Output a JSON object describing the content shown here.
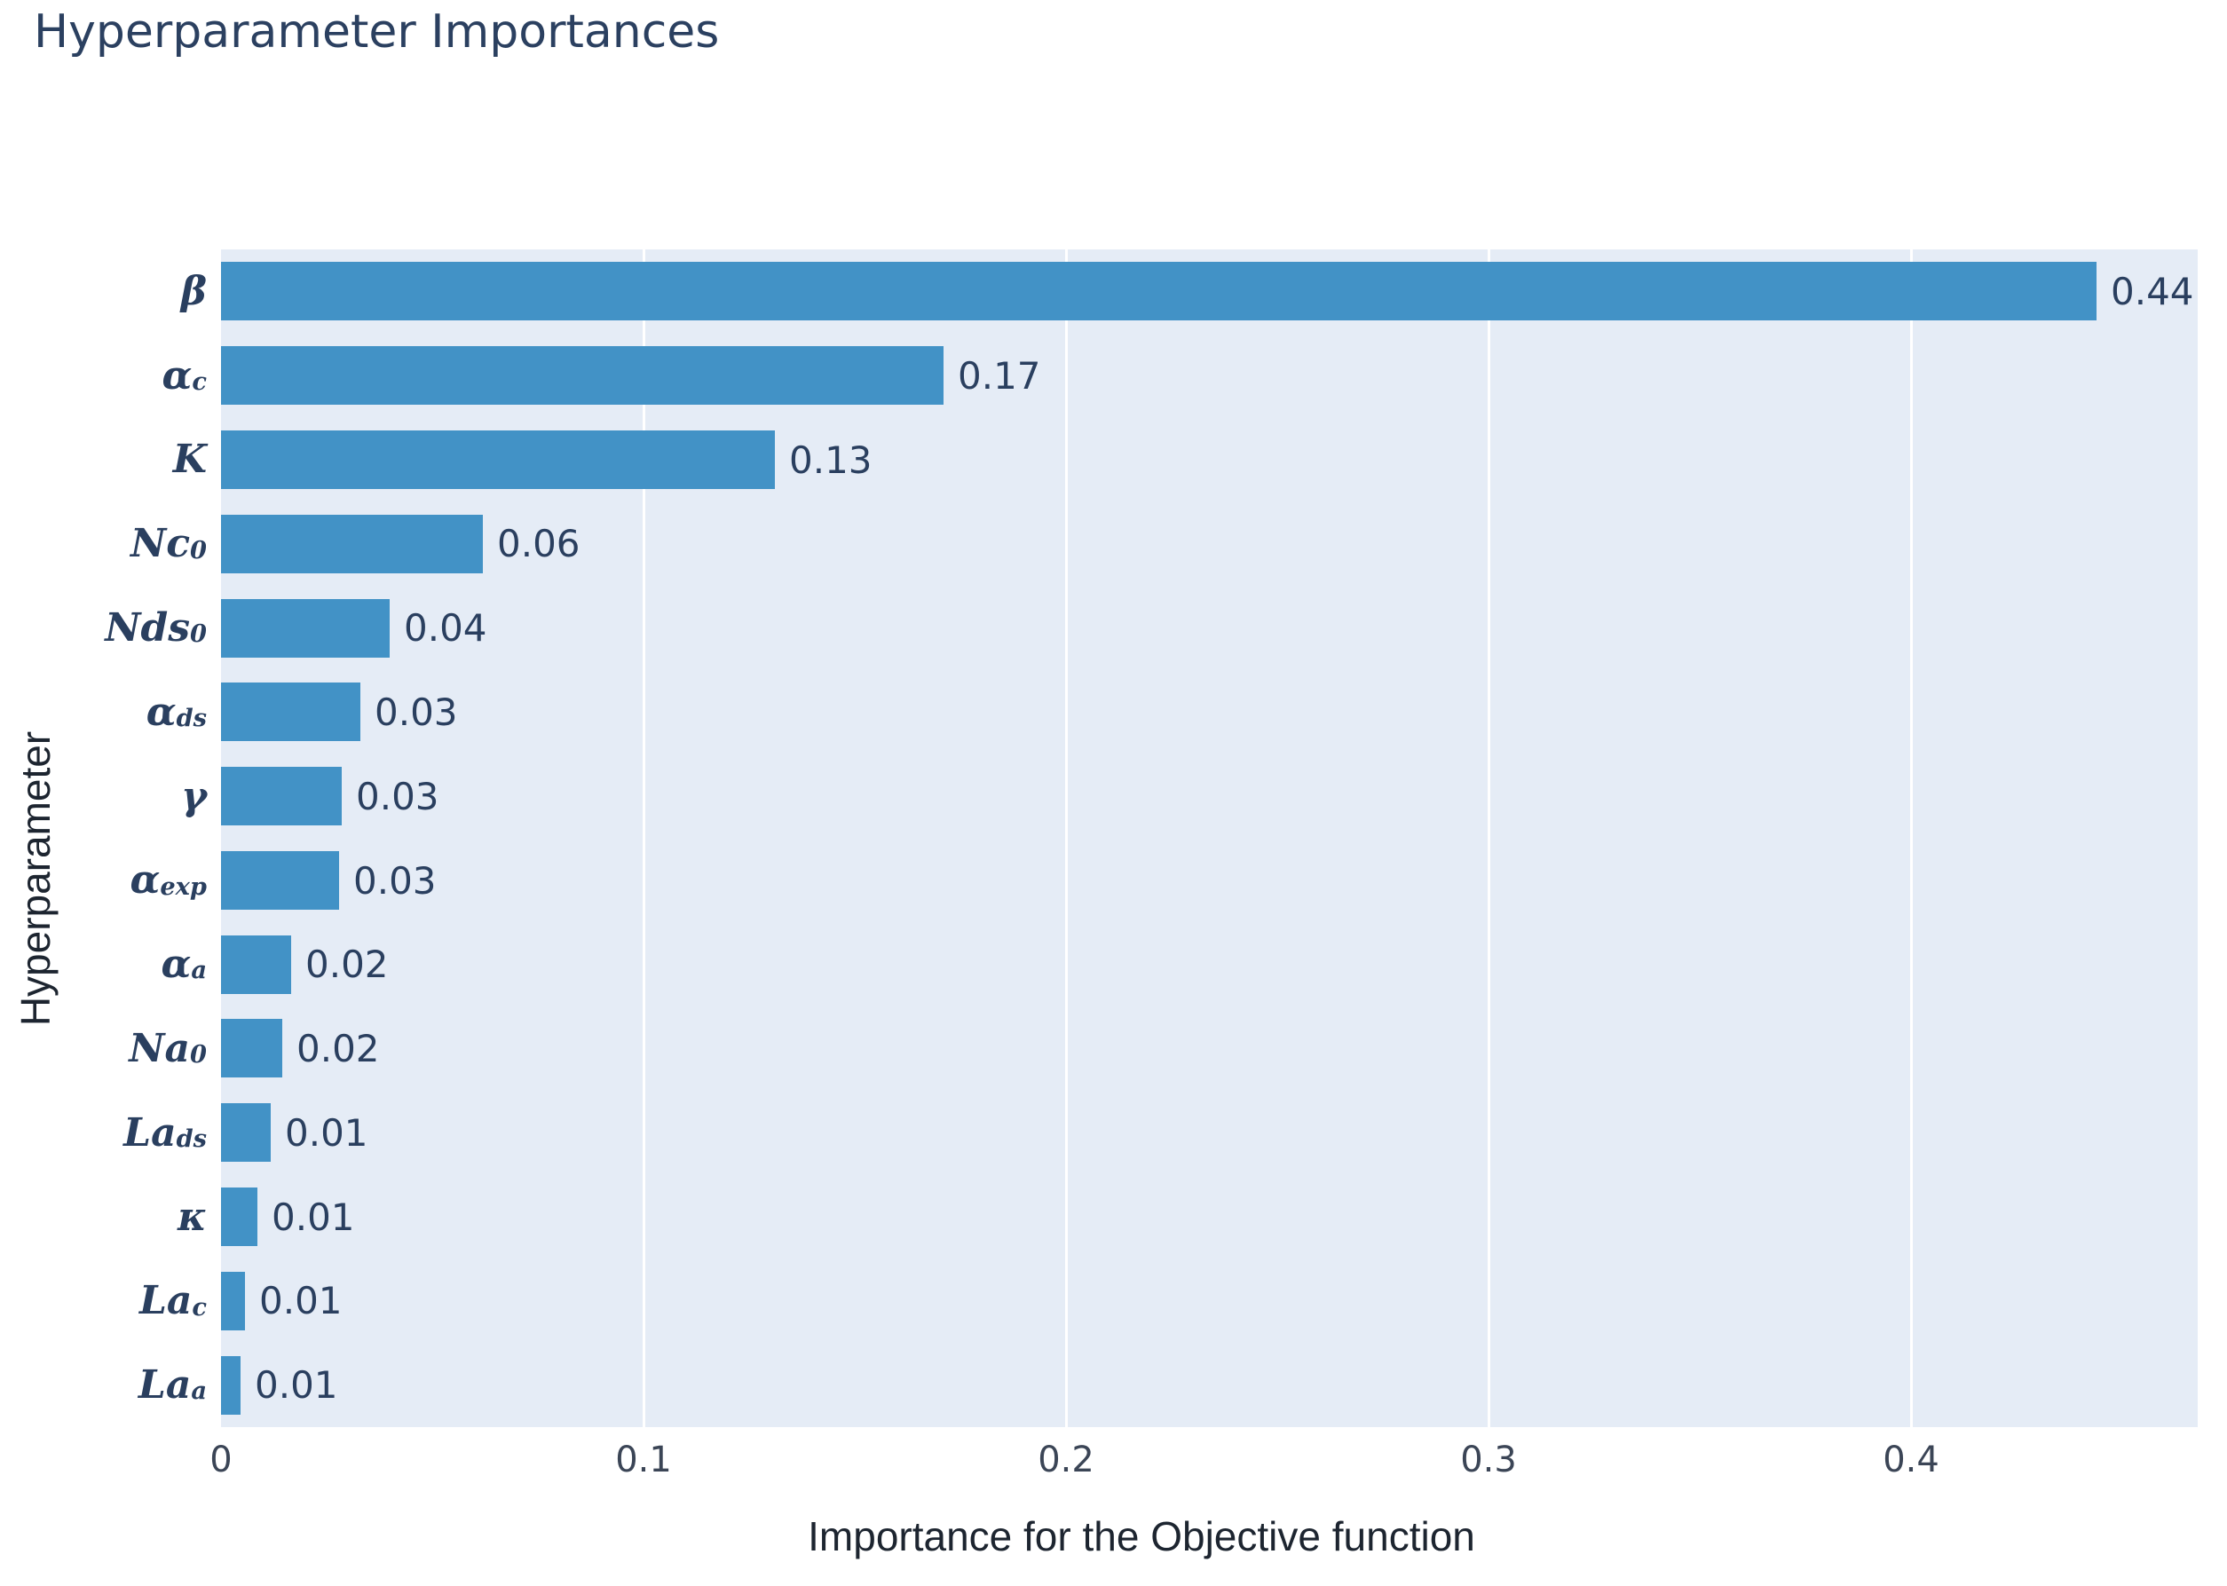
{
  "title": "Hyperparameter Importances",
  "colors": {
    "bar": "#4292c6",
    "plot_background": "#e5ecf6",
    "gridline": "#ffffff",
    "title_text": "#2b4060",
    "tick_text": "#3b4556",
    "value_text": "#2a3f5f"
  },
  "chart_data": {
    "type": "bar",
    "orientation": "horizontal",
    "title": "Hyperparameter Importances",
    "xlabel": "Importance for the Objective function",
    "ylabel": "Hyperparameter",
    "x_ticks": [
      "0",
      "0.1",
      "0.2",
      "0.3",
      "0.4"
    ],
    "x_tick_values": [
      0,
      0.1,
      0.2,
      0.3,
      0.4
    ],
    "xlim": [
      0,
      0.468
    ],
    "grid": true,
    "legend": false,
    "bar_color": "#4292c6",
    "categories": [
      "β",
      "αc",
      "K",
      "Nc0",
      "Nds0",
      "αds",
      "γ",
      "αexp",
      "αa",
      "Na0",
      "Lads",
      "κ",
      "Lac",
      "Laa"
    ],
    "values": [
      0.44,
      0.17,
      0.13,
      0.06,
      0.04,
      0.03,
      0.03,
      0.03,
      0.02,
      0.02,
      0.01,
      0.01,
      0.01,
      0.01
    ],
    "params": [
      {
        "base": "β",
        "sub": "",
        "value_label": "0.44",
        "importance": 0.444
      },
      {
        "base": "α",
        "sub": "c",
        "value_label": "0.17",
        "importance": 0.171
      },
      {
        "base": "K",
        "sub": "",
        "value_label": "0.13",
        "importance": 0.131
      },
      {
        "base": "Nc",
        "sub": "0",
        "value_label": "0.06",
        "importance": 0.062
      },
      {
        "base": "Nds",
        "sub": "0",
        "value_label": "0.04",
        "importance": 0.04
      },
      {
        "base": "α",
        "sub": "ds",
        "value_label": "0.03",
        "importance": 0.033
      },
      {
        "base": "γ",
        "sub": "",
        "value_label": "0.03",
        "importance": 0.0285
      },
      {
        "base": "α",
        "sub": "exp",
        "value_label": "0.03",
        "importance": 0.028
      },
      {
        "base": "α",
        "sub": "a",
        "value_label": "0.02",
        "importance": 0.0166
      },
      {
        "base": "Na",
        "sub": "0",
        "value_label": "0.02",
        "importance": 0.0145
      },
      {
        "base": "La",
        "sub": "ds",
        "value_label": "0.01",
        "importance": 0.0118
      },
      {
        "base": "κ",
        "sub": "",
        "value_label": "0.01",
        "importance": 0.0086
      },
      {
        "base": "La",
        "sub": "c",
        "value_label": "0.01",
        "importance": 0.0057
      },
      {
        "base": "La",
        "sub": "a",
        "value_label": "0.01",
        "importance": 0.0046
      }
    ]
  }
}
